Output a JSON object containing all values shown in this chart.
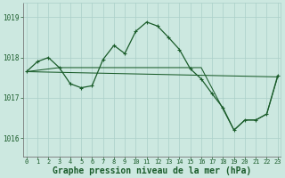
{
  "background_color": "#cce8e0",
  "grid_color": "#aacfc8",
  "line_color": "#1a5c2a",
  "xlabel": "Graphe pression niveau de la mer (hPa)",
  "xlabel_fontsize": 7.0,
  "ylabel_ticks": [
    1016,
    1017,
    1018,
    1019
  ],
  "xtick_labels": [
    "0",
    "1",
    "2",
    "3",
    "4",
    "5",
    "6",
    "7",
    "8",
    "9",
    "10",
    "11",
    "12",
    "13",
    "14",
    "15",
    "16",
    "17",
    "18",
    "19",
    "20",
    "21",
    "22",
    "23"
  ],
  "xticks": [
    0,
    1,
    2,
    3,
    4,
    5,
    6,
    7,
    8,
    9,
    10,
    11,
    12,
    13,
    14,
    15,
    16,
    17,
    18,
    19,
    20,
    21,
    22,
    23
  ],
  "ylim": [
    1015.55,
    1019.35
  ],
  "xlim": [
    -0.3,
    23.3
  ],
  "series1": {
    "x": [
      0,
      1,
      2,
      3,
      4,
      5,
      6,
      7,
      8,
      9,
      10,
      11,
      12,
      13,
      14,
      15,
      16,
      17,
      18,
      19,
      20,
      21,
      22,
      23
    ],
    "y": [
      1017.65,
      1017.9,
      1018.0,
      1017.75,
      1017.35,
      1017.25,
      1017.3,
      1017.95,
      1018.3,
      1018.1,
      1018.65,
      1018.88,
      1018.78,
      1018.5,
      1018.2,
      1017.72,
      1017.47,
      1017.1,
      1016.75,
      1016.2,
      1016.45,
      1016.45,
      1016.6,
      1017.55
    ]
  },
  "line1": {
    "x": [
      0,
      23
    ],
    "y": [
      1017.65,
      1017.52
    ]
  },
  "line2": {
    "x": [
      0,
      3,
      7,
      10,
      16,
      19,
      20,
      21,
      22,
      23
    ],
    "y": [
      1017.65,
      1017.75,
      1017.75,
      1017.75,
      1017.75,
      1016.2,
      1016.45,
      1016.45,
      1016.6,
      1017.52
    ]
  }
}
